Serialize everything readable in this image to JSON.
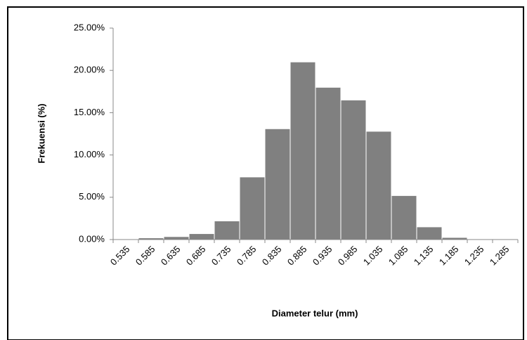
{
  "chart_data": {
    "type": "bar",
    "xlabel": "Diameter telur (mm)",
    "ylabel": "Frekuensi (%)",
    "categories": [
      "0.535",
      "0.585",
      "0.635",
      "0.685",
      "0.735",
      "0.785",
      "0.835",
      "0.885",
      "0.935",
      "0.985",
      "1.035",
      "1.085",
      "1.135",
      "1.185",
      "1.235",
      "1.285"
    ],
    "values": [
      0,
      0.2,
      0.35,
      0.7,
      2.2,
      7.4,
      13.1,
      21.0,
      18.0,
      16.5,
      12.8,
      5.2,
      1.5,
      0.25,
      0,
      0
    ],
    "color": "#808080",
    "ylim": [
      0,
      25
    ],
    "yticks": [
      {
        "value": 0,
        "label": "0.00%"
      },
      {
        "value": 5,
        "label": "5.00%"
      },
      {
        "value": 10,
        "label": "10.00%"
      },
      {
        "value": 15,
        "label": "15.00%"
      },
      {
        "value": 20,
        "label": "20.00%"
      },
      {
        "value": 25,
        "label": "25.00%"
      }
    ],
    "grid": false
  }
}
